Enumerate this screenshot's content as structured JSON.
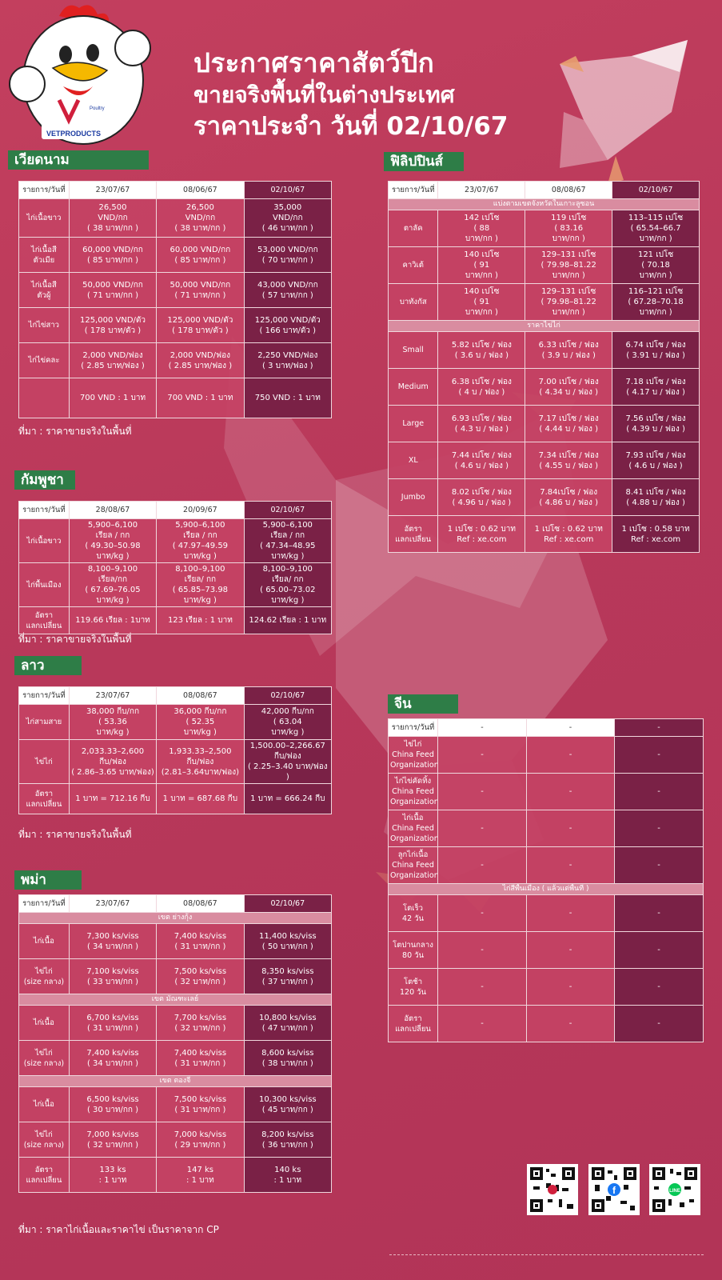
{
  "header": {
    "line1": "ประกาศราคาสัตว์ปีก",
    "line2": "ขายจริงพื้นที่ในต่างประเทศ",
    "line3": "ราคาประจำ วันที่ 02/10/67"
  },
  "logo": {
    "brand": "VETPRODUCTS",
    "tag": "Poultry"
  },
  "vietnam": {
    "title": "เวียดนาม",
    "header": [
      "รายการ/วันที่",
      "23/07/67",
      "08/06/67",
      "02/10/67"
    ],
    "rows": [
      {
        "label": "ไก่เนื้อขาว",
        "c": [
          "26,500\nVND/กก\n( 38 บาท/กก )",
          "26,500\nVND/กก\n( 38 บาท/กก )",
          "35,000\nVND/กก\n( 46 บาท/กก )"
        ]
      },
      {
        "label": "ไก่เนื้อสี\nตัวเมีย",
        "c": [
          "60,000 VND/กก\n( 85 บาท/กก )",
          "60,000 VND/กก\n( 85 บาท/กก )",
          "53,000 VND/กก\n( 70 บาท/กก )"
        ]
      },
      {
        "label": "ไก่เนื้อสี\nตัวผู้",
        "c": [
          "50,000 VND/กก\n( 71 บาท/กก )",
          "50,000 VND/กก\n( 71 บาท/กก )",
          "43,000 VND/กก\n( 57 บาท/กก )"
        ]
      },
      {
        "label": "ไก่ไข่สาว",
        "c": [
          "125,000 VND/ตัว\n( 178 บาท/ตัว )",
          "125,000 VND/ตัว\n( 178 บาท/ตัว )",
          "125,000 VND/ตัว\n( 166 บาท/ตัว )"
        ]
      },
      {
        "label": "ไก่ไข่คละ",
        "c": [
          "2,000 VND/ฟอง\n( 2.85 บาท/ฟอง )",
          "2,000 VND/ฟอง\n( 2.85 บาท/ฟอง )",
          "2,250 VND/ฟอง\n( 3 บาท/ฟอง )"
        ]
      },
      {
        "label": "",
        "c": [
          "700 VND : 1 บาท",
          "700 VND : 1 บาท",
          "750 VND : 1 บาท"
        ]
      }
    ],
    "note": "ที่มา : ราคาขายจริงในพื้นที่"
  },
  "cambodia": {
    "title": "กัมพูชา",
    "header": [
      "รายการ/วันที่",
      "28/08/67",
      "20/09/67",
      "02/10/67"
    ],
    "rows": [
      {
        "label": "ไก่เนื้อขาว",
        "c": [
          "5,900–6,100\nเรียล / กก\n( 49.30–50.98 บาท/kg )",
          "5,900–6,100\nเรียล / กก\n( 47.97–49.59 บาท/kg )",
          "5,900–6,100\nเรียล / กก\n( 47.34–48.95 บาท/kg )"
        ]
      },
      {
        "label": "ไก่พื้นเมือง",
        "c": [
          "8,100–9,100\nเรียล/กก\n( 67.69–76.05 บาท/kg )",
          "8,100–9,100\nเรียล/ กก\n( 65.85–73.98 บาท/kg )",
          "8,100–9,100\nเรียล/ กก\n( 65.00–73.02 บาท/kg )"
        ]
      },
      {
        "label": "อัตรา\nแลกเปลี่ยน",
        "c": [
          "119.66 เรียล : 1บาท",
          "123 เรียล : 1 บาท",
          "124.62 เรียล : 1 บาท"
        ]
      }
    ],
    "note": "ที่มา : ราคาขายจริงในพื้นที่"
  },
  "laos": {
    "title": "ลาว",
    "header": [
      "รายการ/วันที่",
      "23/07/67",
      "08/08/67",
      "02/10/67"
    ],
    "rows": [
      {
        "label": "ไก่สามสาย",
        "c": [
          "38,000 กีบ/กก\n( 53.36\nบาท/kg )",
          "36,000 กีบ/กก\n( 52.35\nบาท/kg )",
          "42,000 กีบ/กก\n( 63.04\nบาท/kg )"
        ]
      },
      {
        "label": "ไข่ไก่",
        "c": [
          "2,033.33–2,600\nกีบ/ฟอง\n( 2.86–3.65 บาท/ฟอง)",
          "1,933.33–2,500\nกีบ/ฟอง\n(2.81–3.64บาท/ฟอง)",
          "1,500.00–2,266.67\nกีบ/ฟอง\n( 2.25–3.40 บาท/ฟอง )"
        ]
      },
      {
        "label": "อัตรา\nแลกเปลี่ยน",
        "c": [
          "1 บาท = 712.16 กีบ",
          "1 บาท = 687.68 กีบ",
          "1 บาท = 666.24 กีบ"
        ]
      }
    ],
    "note": "ที่มา : ราคาขายจริงในพื้นที่"
  },
  "myanmar": {
    "title": "พม่า",
    "header": [
      "รายการ/วันที่",
      "23/07/67",
      "08/08/67",
      "02/10/67"
    ],
    "zones": [
      {
        "name": "เขต ย่างกุ้ง",
        "rows": [
          {
            "label": "ไก่เนื้อ",
            "c": [
              "7,300 ks/viss\n( 34 บาท/กก )",
              "7,400 ks/viss\n( 31 บาท/กก )",
              "11,400 ks/viss\n( 50 บาท/กก )"
            ]
          },
          {
            "label": "ไข่ไก่\n(size กลาง)",
            "c": [
              "7,100 ks/viss\n( 33 บาท/กก )",
              "7,500 ks/viss\n( 32 บาท/กก )",
              "8,350 ks/viss\n( 37 บาท/กก )"
            ]
          }
        ]
      },
      {
        "name": "เขต มัณฑะเลย์",
        "rows": [
          {
            "label": "ไก่เนื้อ",
            "c": [
              "6,700 ks/viss\n( 31 บาท/กก )",
              "7,700  ks/viss\n( 32 บาท/กก )",
              "10,800 ks/viss\n( 47 บาท/กก )"
            ]
          },
          {
            "label": "ไข่ไก่\n(size กลาง)",
            "c": [
              "7,400 ks/viss\n( 34 บาท/กก )",
              "7,400 ks/viss\n( 31 บาท/กก )",
              "8,600 ks/viss\n( 38 บาท/กก )"
            ]
          }
        ]
      },
      {
        "name": "เขต ตองจี",
        "rows": [
          {
            "label": "ไก่เนื้อ",
            "c": [
              "6,500 ks/viss\n( 30 บาท/กก )",
              "7,500 ks/viss\n( 31 บาท/กก )",
              "10,300 ks/viss\n( 45 บาท/กก )"
            ]
          },
          {
            "label": "ไข่ไก่\n(size กลาง)",
            "c": [
              "7,000 ks/viss\n( 32 บาท/กก )",
              "7,000 ks/viss\n( 29 บาท/กก )",
              "8,200 ks/viss\n( 36 บาท/กก )"
            ]
          }
        ]
      }
    ],
    "rate": {
      "label": "อัตรา\nแลกเปลี่ยน",
      "c": [
        "133  ks\n: 1 บาท",
        "147  ks\n: 1 บาท",
        "140 ks\n: 1 บาท"
      ]
    },
    "note": "ที่มา : ราคาไก่เนื้อและราคาไข่ เป็นราคาจาก CP"
  },
  "philippines": {
    "title": "ฟิลิปปินส์",
    "header": [
      "รายการ/วันที่",
      "23/07/67",
      "08/08/67",
      "02/10/67"
    ],
    "sub1": "แบ่งตามเขตจังหวัดในเกาะลูซอน",
    "regions": [
      {
        "label": "ตาลัค",
        "c": [
          "142 เปโซ\n( 88\nบาท/กก )",
          "119 เปโซ\n( 83.16\nบาท/กก )",
          "113–115 เปโซ\n( 65.54–66.7\nบาท/กก )"
        ]
      },
      {
        "label": "คาวิเต้",
        "c": [
          "140 เปโซ\n( 91\nบาท/กก )",
          "129–131 เปโซ\n( 79.98–81.22\nบาท/กก )",
          "121 เปโซ\n( 70.18\nบาท/กก )"
        ]
      },
      {
        "label": "บาทังกัส",
        "c": [
          "140 เปโซ\n( 91\nบาท/กก )",
          "129–131 เปโซ\n( 79.98–81.22\nบาท/กก )",
          "116–121 เปโซ\n( 67.28–70.18\nบาท/กก )"
        ]
      }
    ],
    "sub2": "ราคาไข่ไก่",
    "eggs": [
      {
        "label": "Small",
        "c": [
          "5.82 เปโซ / ฟอง\n( 3.6 บ / ฟอง )",
          "6.33 เปโซ / ฟอง\n( 3.9 บ / ฟอง )",
          "6.74 เปโซ / ฟอง\n( 3.91 บ / ฟอง )"
        ]
      },
      {
        "label": "Medium",
        "c": [
          "6.38 เปโซ / ฟอง\n( 4 บ / ฟอง )",
          "7.00 เปโซ / ฟอง\n( 4.34 บ / ฟอง )",
          "7.18 เปโซ / ฟอง\n( 4.17 บ / ฟอง )"
        ]
      },
      {
        "label": "Large",
        "c": [
          "6.93 เปโซ / ฟอง\n( 4.3 บ / ฟอง )",
          "7.17 เปโซ / ฟอง\n( 4.44 บ / ฟอง )",
          "7.56 เปโซ / ฟอง\n( 4.39 บ / ฟอง )"
        ]
      },
      {
        "label": "XL",
        "c": [
          "7.44 เปโซ / ฟอง\n( 4.6 บ / ฟอง )",
          "7.34 เปโซ / ฟอง\n( 4.55 บ / ฟอง )",
          "7.93 เปโซ / ฟอง\n( 4.6 บ / ฟอง )"
        ]
      },
      {
        "label": "Jumbo",
        "c": [
          "8.02 เปโซ / ฟอง\n( 4.96 บ / ฟอง )",
          "7.84เปโซ / ฟอง\n( 4.86 บ / ฟอง )",
          "8.41 เปโซ / ฟอง\n( 4.88 บ / ฟอง )"
        ]
      }
    ],
    "rate": {
      "label": "อัตรา\nแลกเปลี่ยน",
      "c": [
        "1 เปโซ : 0.62 บาท\nRef : xe.com",
        "1 เปโซ : 0.62 บาท\nRef : xe.com",
        "1 เปโซ : 0.58 บาท\nRef : xe.com"
      ]
    }
  },
  "china": {
    "title": "จีน",
    "header": [
      "รายการ/วันที่",
      "-",
      "-",
      "-"
    ],
    "rows1": [
      {
        "label": "ไข่ไก่\nChina Feed\nOrganization",
        "c": [
          "-",
          "-",
          "-"
        ]
      },
      {
        "label": "ไก่ไข่คัดทิ้ง\nChina Feed\nOrganization",
        "c": [
          "-",
          "-",
          "-"
        ]
      },
      {
        "label": "ไก่เนื้อ\nChina Feed\nOrganization",
        "c": [
          "-",
          "-",
          "-"
        ]
      },
      {
        "label": "ลูกไก่เนื้อ\nChina Feed\nOrganization",
        "c": [
          "-",
          "-",
          "-"
        ]
      }
    ],
    "sub": "ไก่สีพื้นเมือง ( แล้วแต่พื้นที่ )",
    "rows2": [
      {
        "label": "โตเร็ว\n42 วัน",
        "c": [
          "-",
          "-",
          "-"
        ]
      },
      {
        "label": "โตปานกลาง\n80 วัน",
        "c": [
          "-",
          "-",
          "-"
        ]
      },
      {
        "label": "โตช้า\n120 วัน",
        "c": [
          "-",
          "-",
          "-"
        ]
      },
      {
        "label": "อัตรา\nแลกเปลี่ยน",
        "c": [
          "-",
          "-",
          "-"
        ]
      }
    ]
  },
  "qr_codes": [
    "qr-website-icon",
    "qr-facebook-icon",
    "qr-line-icon"
  ],
  "colors": {
    "background": "#bf3b5c",
    "highlight": "#7a2146",
    "tag": "#2e7d47"
  }
}
